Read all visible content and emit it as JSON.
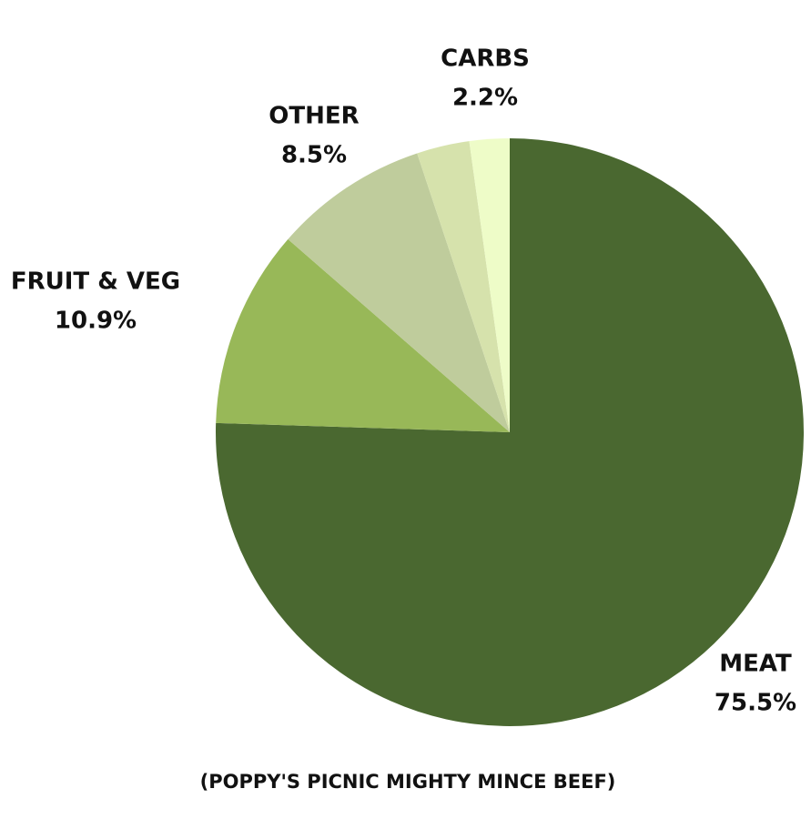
{
  "chart_data": {
    "type": "pie",
    "title": "(POPPY'S PICNIC MIGHTY MINCE BEEF)",
    "categories": [
      "MEAT",
      "FRUIT & VEG",
      "OTHER",
      null,
      "CARBS"
    ],
    "values": [
      75.5,
      10.9,
      8.5,
      2.9,
      2.2
    ],
    "value_labels": [
      "75.5%",
      "10.9%",
      "8.5%",
      null,
      "2.2%"
    ],
    "colors": [
      "#4a6830",
      "#98b858",
      "#bfcc9c",
      "#d6e2ac",
      "#eefcc8"
    ]
  }
}
